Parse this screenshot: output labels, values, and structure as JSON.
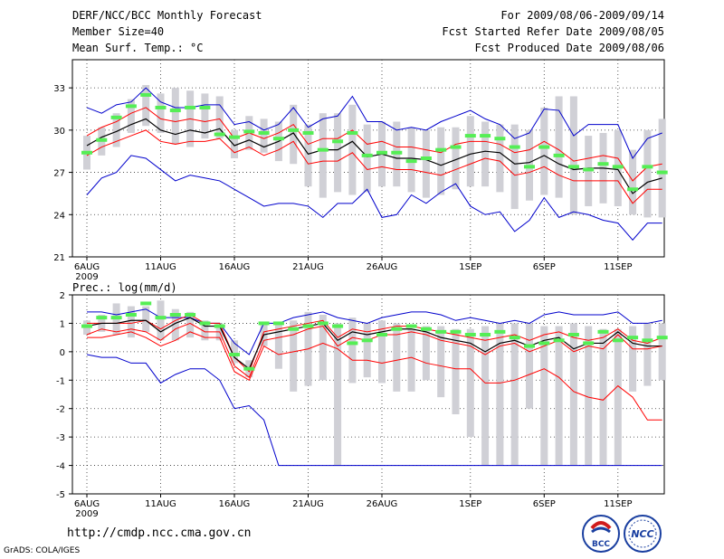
{
  "header": {
    "title": "DERF/NCC/BCC Monthly Forecast",
    "member_size": "Member Size=40",
    "variable": "Mean Surf. Temp.: °C",
    "forecast_period": "For 2009/08/06-2009/09/14",
    "refer_date": "Fcst Started Refer Date 2009/08/05",
    "produced_date": "Fcst Produced Date 2009/08/06"
  },
  "footer": {
    "url": "http://cmdp.ncc.cma.gov.cn",
    "credit": "GrADS: COLA/IGES",
    "logo_left_text": "BCC",
    "logo_right_text": "NCC"
  },
  "colors": {
    "box": "#d0d0d6",
    "member_line": "#ff0000",
    "mean_line": "#000000",
    "extreme_line": "#0000cc",
    "median_mark": "#55ee55",
    "grid": "#333333"
  },
  "chart_data": [
    {
      "type": "box-plot",
      "title": "Mean Surf. Temp.: °C",
      "xlabel": "",
      "ylabel": "°C",
      "xticks": [
        "6AUG",
        "11AUG",
        "16AUG",
        "21AUG",
        "26AUG",
        "1SEP",
        "6SEP",
        "11SEP"
      ],
      "xtick_days": [
        1,
        6,
        11,
        16,
        21,
        27,
        32,
        37
      ],
      "year_label": "2009",
      "ylim": [
        21,
        35
      ],
      "yticks": [
        21,
        24,
        27,
        30,
        33
      ],
      "days": [
        1,
        2,
        3,
        4,
        5,
        6,
        7,
        8,
        9,
        10,
        11,
        12,
        13,
        14,
        15,
        16,
        17,
        18,
        19,
        20,
        21,
        22,
        23,
        24,
        25,
        26,
        27,
        28,
        29,
        30,
        31,
        32,
        33,
        34,
        35,
        36,
        37,
        38,
        39,
        40
      ],
      "box_low": [
        27.2,
        28.2,
        28.8,
        29.8,
        30.3,
        29.8,
        29.0,
        28.8,
        29.4,
        29.4,
        28.0,
        28.6,
        28.4,
        27.8,
        27.6,
        26.0,
        25.2,
        25.6,
        25.4,
        25.6,
        26.0,
        26.0,
        25.6,
        25.2,
        25.4,
        25.8,
        26.0,
        26.0,
        25.6,
        24.4,
        25.0,
        25.4,
        25.2,
        24.0,
        24.6,
        24.8,
        24.6,
        24.0,
        23.8,
        23.8
      ],
      "box_high": [
        29.6,
        30.2,
        31.2,
        32.2,
        33.2,
        32.6,
        33.0,
        32.8,
        32.6,
        32.4,
        30.0,
        31.0,
        30.8,
        30.6,
        31.8,
        30.4,
        31.2,
        31.2,
        31.8,
        30.4,
        30.6,
        30.6,
        30.2,
        30.0,
        30.2,
        30.2,
        31.0,
        30.6,
        30.4,
        30.4,
        30.0,
        31.6,
        32.4,
        32.4,
        29.6,
        29.8,
        30.0,
        28.6,
        30.0,
        30.8
      ],
      "series": [
        {
          "name": "max",
          "values": [
            31.6,
            31.2,
            31.8,
            32.0,
            33.0,
            32.0,
            31.6,
            31.6,
            31.8,
            31.8,
            30.4,
            30.6,
            30.0,
            30.4,
            31.6,
            30.2,
            30.8,
            31.0,
            32.4,
            30.6,
            30.6,
            30.0,
            30.2,
            30.0,
            30.6,
            31.0,
            31.4,
            30.8,
            30.4,
            29.4,
            29.8,
            31.5,
            31.4,
            29.6,
            30.4,
            30.4,
            30.4,
            28.0,
            29.4,
            29.8
          ]
        },
        {
          "name": "upper_member",
          "values": [
            29.6,
            30.2,
            30.6,
            31.2,
            31.6,
            30.8,
            30.6,
            30.8,
            30.6,
            30.8,
            29.4,
            29.8,
            29.4,
            29.8,
            30.4,
            29.0,
            29.4,
            29.4,
            30.0,
            29.0,
            29.2,
            28.8,
            28.8,
            28.6,
            28.4,
            29.0,
            29.2,
            29.2,
            29.0,
            28.4,
            28.6,
            29.2,
            28.6,
            27.8,
            28.0,
            28.2,
            28.0,
            26.4,
            27.4,
            27.6
          ]
        },
        {
          "name": "mean",
          "values": [
            28.9,
            29.5,
            29.9,
            30.4,
            30.8,
            30.0,
            29.7,
            30.0,
            29.8,
            30.1,
            28.9,
            29.3,
            28.8,
            29.2,
            29.8,
            28.3,
            28.6,
            28.6,
            29.2,
            28.1,
            28.3,
            28.0,
            28.0,
            27.9,
            27.5,
            27.9,
            28.3,
            28.5,
            28.4,
            27.6,
            27.7,
            28.2,
            27.6,
            27.2,
            27.3,
            27.3,
            27.2,
            25.5,
            26.3,
            26.6
          ]
        },
        {
          "name": "lower_member",
          "values": [
            28.2,
            28.8,
            29.2,
            29.6,
            30.0,
            29.2,
            29.0,
            29.2,
            29.2,
            29.4,
            28.4,
            28.8,
            28.2,
            28.6,
            29.2,
            27.6,
            27.8,
            27.8,
            28.4,
            27.2,
            27.4,
            27.2,
            27.2,
            27.0,
            26.8,
            27.2,
            27.6,
            28.0,
            27.8,
            26.8,
            27.0,
            27.4,
            26.8,
            26.4,
            26.4,
            26.4,
            26.4,
            24.8,
            25.8,
            25.8
          ]
        },
        {
          "name": "min",
          "values": [
            25.4,
            26.6,
            27.0,
            28.2,
            28.0,
            27.2,
            26.4,
            26.8,
            26.6,
            26.4,
            25.8,
            25.2,
            24.6,
            24.8,
            24.8,
            24.6,
            23.8,
            24.8,
            24.8,
            25.8,
            23.8,
            24.0,
            25.4,
            24.8,
            25.6,
            26.2,
            24.6,
            24.0,
            24.2,
            22.8,
            23.6,
            25.2,
            23.8,
            24.2,
            24.0,
            23.6,
            23.4,
            22.2,
            23.4,
            23.4
          ]
        }
      ],
      "median": [
        28.4,
        29.3,
        30.9,
        31.7,
        32.5,
        31.6,
        31.4,
        31.6,
        31.6,
        29.7,
        29.5,
        29.9,
        29.8,
        29.4,
        30.0,
        29.8,
        28.6,
        29.2,
        29.8,
        28.2,
        28.4,
        28.4,
        27.8,
        28.0,
        28.6,
        28.8,
        29.6,
        29.6,
        29.4,
        28.8,
        27.4,
        28.8,
        28.2,
        27.4,
        27.2,
        27.6,
        27.4,
        25.8,
        27.4,
        27.0
      ]
    },
    {
      "type": "box-plot",
      "title": "Prec.: log(mm/d)",
      "xlabel": "",
      "ylabel": "log(mm/d)",
      "xticks": [
        "6AUG",
        "11AUG",
        "16AUG",
        "21AUG",
        "26AUG",
        "1SEP",
        "6SEP",
        "11SEP"
      ],
      "xtick_days": [
        1,
        6,
        11,
        16,
        21,
        27,
        32,
        37
      ],
      "year_label": "2009",
      "ylim": [
        -5,
        2
      ],
      "yticks": [
        -5,
        -4,
        -3,
        -2,
        -1,
        0,
        1,
        2
      ],
      "days": [
        1,
        2,
        3,
        4,
        5,
        6,
        7,
        8,
        9,
        10,
        11,
        12,
        13,
        14,
        15,
        16,
        17,
        18,
        19,
        20,
        21,
        22,
        23,
        24,
        25,
        26,
        27,
        28,
        29,
        30,
        31,
        32,
        33,
        34,
        35,
        36,
        37,
        38,
        39,
        40
      ],
      "box_low": [
        0.6,
        0.7,
        0.6,
        0.5,
        0.7,
        0.4,
        0.4,
        0.5,
        0.4,
        0.4,
        -0.4,
        -0.9,
        0.2,
        -0.6,
        -1.4,
        -1.2,
        -1.0,
        -4.0,
        -1.1,
        -0.9,
        -1.1,
        -1.4,
        -1.4,
        -1.0,
        -1.6,
        -2.2,
        -3.0,
        -4.0,
        -4.0,
        -4.0,
        -2.0,
        -4.0,
        -4.0,
        -4.0,
        -4.0,
        -4.0,
        -4.0,
        -1.4,
        -1.2,
        -1.0
      ],
      "box_high": [
        1.1,
        1.3,
        1.7,
        1.6,
        1.6,
        1.8,
        1.5,
        1.4,
        1.1,
        1.0,
        0.4,
        -0.3,
        1.0,
        1.0,
        1.1,
        1.4,
        1.3,
        1.0,
        1.2,
        1.0,
        1.1,
        1.0,
        0.8,
        0.9,
        0.9,
        0.8,
        0.8,
        0.9,
        1.0,
        1.0,
        1.0,
        0.9,
        0.9,
        1.0,
        0.9,
        0.8,
        0.8,
        0.9,
        1.0,
        1.0
      ],
      "series": [
        {
          "name": "max",
          "values": [
            1.4,
            1.4,
            1.3,
            1.4,
            1.5,
            1.2,
            1.2,
            1.2,
            1.0,
            1.0,
            0.3,
            -0.1,
            1.0,
            1.0,
            1.2,
            1.3,
            1.4,
            1.2,
            1.1,
            1.0,
            1.2,
            1.3,
            1.4,
            1.4,
            1.3,
            1.1,
            1.2,
            1.1,
            1.0,
            1.1,
            1.0,
            1.3,
            1.4,
            1.3,
            1.3,
            1.3,
            1.4,
            1.0,
            1.0,
            1.1
          ]
        },
        {
          "name": "upper_member",
          "values": [
            1.0,
            1.0,
            1.0,
            1.0,
            1.1,
            0.8,
            1.1,
            1.3,
            1.0,
            1.0,
            -0.2,
            -0.7,
            0.7,
            0.8,
            0.9,
            1.0,
            1.1,
            0.5,
            0.8,
            0.7,
            0.8,
            0.9,
            0.9,
            0.8,
            0.7,
            0.6,
            0.5,
            0.4,
            0.5,
            0.6,
            0.4,
            0.6,
            0.7,
            0.5,
            0.4,
            0.5,
            0.8,
            0.4,
            0.3,
            0.5
          ]
        },
        {
          "name": "mean",
          "values": [
            0.9,
            1.0,
            1.0,
            1.1,
            1.1,
            0.7,
            1.0,
            1.2,
            0.9,
            0.9,
            -0.2,
            -0.6,
            0.6,
            0.7,
            0.8,
            0.9,
            1.0,
            0.4,
            0.7,
            0.6,
            0.7,
            0.8,
            0.8,
            0.7,
            0.5,
            0.4,
            0.3,
            0.0,
            0.3,
            0.4,
            0.2,
            0.4,
            0.5,
            0.1,
            0.3,
            0.3,
            0.7,
            0.3,
            0.2,
            0.2
          ]
        },
        {
          "name": "lower_member",
          "values": [
            0.6,
            0.8,
            0.7,
            0.8,
            0.7,
            0.4,
            0.8,
            1.0,
            0.7,
            0.7,
            -0.5,
            -0.9,
            0.4,
            0.5,
            0.6,
            0.8,
            0.9,
            0.2,
            0.5,
            0.4,
            0.6,
            0.6,
            0.7,
            0.6,
            0.4,
            0.3,
            0.2,
            -0.1,
            0.2,
            0.3,
            0.0,
            0.2,
            0.4,
            0.0,
            0.2,
            0.1,
            0.6,
            0.1,
            0.1,
            0.2
          ]
        },
        {
          "name": "min_member",
          "values": [
            0.5,
            0.5,
            0.6,
            0.7,
            0.5,
            0.2,
            0.4,
            0.7,
            0.5,
            0.5,
            -0.7,
            -1.0,
            0.2,
            -0.1,
            0.0,
            0.1,
            0.3,
            0.1,
            -0.3,
            -0.3,
            -0.4,
            -0.3,
            -0.2,
            -0.4,
            -0.5,
            -0.6,
            -0.6,
            -1.1,
            -1.1,
            -1.0,
            -0.8,
            -0.6,
            -0.9,
            -1.4,
            -1.6,
            -1.7,
            -1.2,
            -1.6,
            -2.4,
            -2.4
          ]
        },
        {
          "name": "min",
          "values": [
            -0.1,
            -0.2,
            -0.2,
            -0.4,
            -0.4,
            -1.1,
            -0.8,
            -0.6,
            -0.6,
            -1.0,
            -2.0,
            -1.9,
            -2.4,
            -4.0,
            -4.0,
            -4.0,
            -4.0,
            -4.0,
            -4.0,
            -4.0,
            -4.0,
            -4.0,
            -4.0,
            -4.0,
            -4.0,
            -4.0,
            -4.0,
            -4.0,
            -4.0,
            -4.0,
            -4.0,
            -4.0,
            -4.0,
            -4.0,
            -4.0,
            -4.0,
            -4.0,
            -4.0,
            -4.0,
            -4.0
          ]
        }
      ],
      "median": [
        0.9,
        1.2,
        1.2,
        1.3,
        1.7,
        1.2,
        1.3,
        1.3,
        1.0,
        0.9,
        -0.1,
        -0.6,
        1.0,
        1.0,
        0.8,
        0.9,
        1.0,
        0.9,
        0.3,
        0.4,
        0.6,
        0.8,
        0.9,
        0.8,
        0.7,
        0.7,
        0.6,
        0.6,
        0.7,
        0.5,
        0.2,
        0.3,
        0.4,
        0.6,
        0.3,
        0.7,
        0.4,
        0.5,
        0.4,
        0.5
      ]
    }
  ]
}
